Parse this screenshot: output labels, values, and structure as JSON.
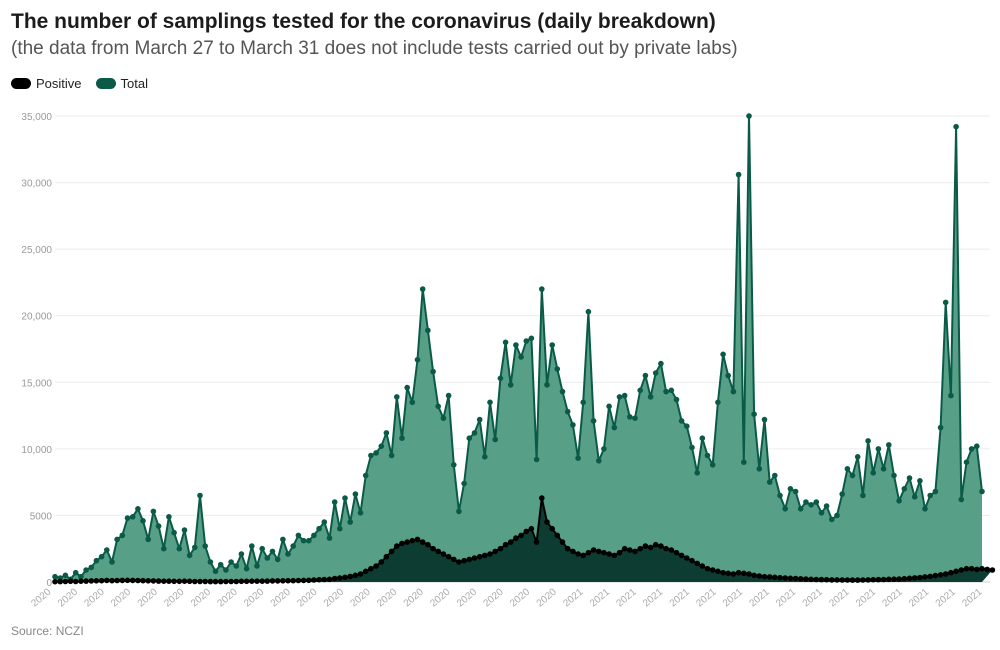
{
  "header": {
    "title": "The number of samplings tested for the coronavirus (daily breakdown)",
    "subtitle": "(the data from March 27 to March 31 does not include tests carried out by private labs)"
  },
  "legend": {
    "positive_label": "Positive",
    "total_label": "Total"
  },
  "footer": {
    "source": "Source: NCZI"
  },
  "colors": {
    "positive": "#000000",
    "total_line": "#0b5a48",
    "total_fill": "#4e9a7f",
    "positive_fill": "#0d3d32"
  },
  "chart_data": {
    "type": "area",
    "ylim": [
      0,
      35000
    ],
    "yticks": [
      0,
      5000,
      10000,
      15000,
      20000,
      25000,
      30000,
      35000
    ],
    "ytick_labels": [
      "0",
      "5000",
      "10,000",
      "15,000",
      "20,000",
      "25,000",
      "30,000",
      "35,000"
    ],
    "x_tick_labels": [
      "2020",
      "2020",
      "2020",
      "2020",
      "2020",
      "2020",
      "2020",
      "2020",
      "2020",
      "2020",
      "2020",
      "2020",
      "2020",
      "2020",
      "2020",
      "2020",
      "2020",
      "2020",
      "2020",
      "2020",
      "2021",
      "2021",
      "2021",
      "2021",
      "2021",
      "2021",
      "2021",
      "2021",
      "2021",
      "2021",
      "2021",
      "2021",
      "2021",
      "2021",
      "2021",
      "2021"
    ],
    "grid": true,
    "legend_position": "top-left",
    "series": [
      {
        "name": "Total",
        "values": [
          400,
          300,
          500,
          200,
          700,
          400,
          900,
          1100,
          1600,
          1900,
          2400,
          1500,
          3200,
          3500,
          4800,
          4900,
          5500,
          4600,
          3200,
          5300,
          4200,
          2500,
          4900,
          3700,
          2500,
          3900,
          2000,
          2600,
          6500,
          2700,
          1500,
          800,
          1300,
          900,
          1500,
          1200,
          2100,
          1000,
          2700,
          1200,
          2500,
          1800,
          2300,
          1700,
          3200,
          2100,
          2700,
          3500,
          3100,
          3100,
          3500,
          4000,
          4500,
          3300,
          6000,
          4000,
          6300,
          4500,
          6600,
          5200,
          8000,
          9500,
          9700,
          10200,
          11200,
          9500,
          13900,
          10800,
          14600,
          13500,
          16700,
          22000,
          18900,
          15800,
          13200,
          12300,
          14000,
          8800,
          5300,
          7400,
          10800,
          11200,
          12200,
          9400,
          13500,
          10700,
          15300,
          18000,
          14800,
          17800,
          16900,
          18100,
          18300,
          9200,
          22000,
          14800,
          17800,
          16000,
          14300,
          12800,
          11800,
          9300,
          13500,
          20300,
          12100,
          9100,
          10000,
          13200,
          11600,
          13900,
          14000,
          12400,
          12300,
          14400,
          15500,
          13900,
          15700,
          16400,
          14300,
          14400,
          13700,
          12100,
          11700,
          10100,
          8200,
          10800,
          9500,
          8800,
          13500,
          17100,
          15500,
          14300,
          30600,
          9000,
          35000,
          12600,
          8500,
          12200,
          7500,
          8000,
          6500,
          5500,
          7000,
          6800,
          5500,
          6000,
          5800,
          6000,
          5200,
          5700,
          4700,
          5000,
          6600,
          8500,
          8000,
          9400,
          6500,
          10600,
          8200,
          10000,
          8500,
          10300,
          8000,
          6100,
          7000,
          7800,
          6400,
          7600,
          5500,
          6500,
          6800,
          11600,
          21000,
          14000,
          34200,
          6200,
          9000,
          10000,
          10200,
          6800
        ]
      },
      {
        "name": "Positive",
        "values": [
          20,
          30,
          40,
          50,
          40,
          60,
          70,
          80,
          90,
          100,
          120,
          100,
          110,
          120,
          130,
          120,
          110,
          100,
          90,
          80,
          70,
          60,
          60,
          50,
          50,
          60,
          50,
          40,
          40,
          40,
          30,
          30,
          30,
          40,
          40,
          40,
          50,
          50,
          60,
          60,
          60,
          70,
          80,
          80,
          90,
          100,
          100,
          110,
          120,
          130,
          150,
          170,
          190,
          200,
          260,
          300,
          350,
          420,
          500,
          600,
          800,
          1000,
          1200,
          1500,
          1900,
          2300,
          2700,
          2900,
          3000,
          3100,
          3200,
          3000,
          2800,
          2500,
          2300,
          2100,
          1900,
          1700,
          1500,
          1600,
          1700,
          1800,
          1900,
          2000,
          2100,
          2300,
          2500,
          2800,
          3000,
          3300,
          3500,
          3800,
          4000,
          3000,
          6300,
          4500,
          4000,
          3500,
          3000,
          2500,
          2300,
          2100,
          2000,
          2200,
          2400,
          2300,
          2200,
          2100,
          2000,
          2200,
          2500,
          2400,
          2300,
          2500,
          2700,
          2600,
          2800,
          2700,
          2500,
          2400,
          2200,
          2000,
          1800,
          1600,
          1400,
          1200,
          1000,
          900,
          800,
          700,
          650,
          600,
          700,
          650,
          600,
          500,
          450,
          400,
          380,
          350,
          320,
          300,
          280,
          260,
          240,
          220,
          200,
          190,
          180,
          170,
          160,
          160,
          150,
          150,
          140,
          140,
          150,
          160,
          170,
          180,
          190,
          200,
          210,
          220,
          250,
          280,
          310,
          340,
          380,
          420,
          480,
          540,
          600,
          700,
          800,
          900,
          1000,
          1000,
          950,
          1000,
          950,
          900
        ]
      }
    ]
  }
}
